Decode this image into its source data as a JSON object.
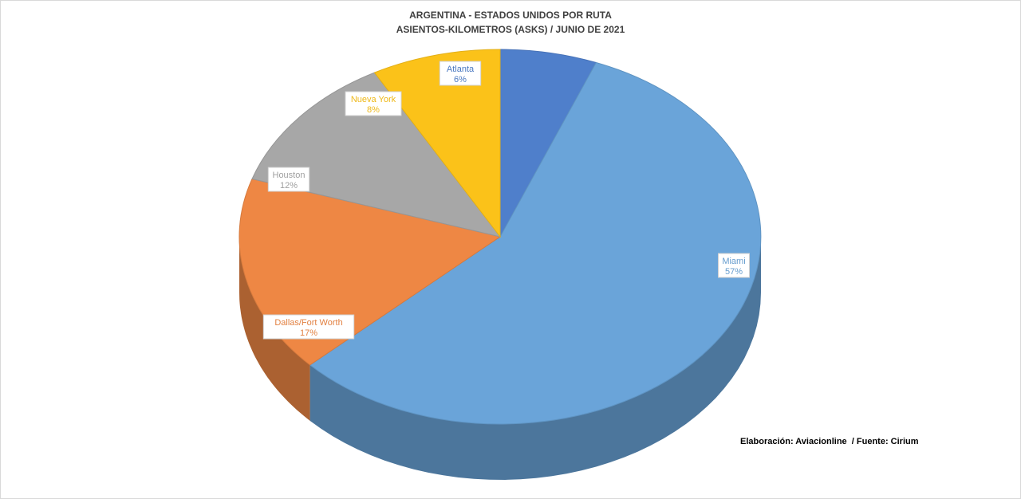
{
  "chart_data": {
    "type": "pie",
    "title_lines": [
      "ARGENTINA - ESTADOS UNIDOS POR RUTA",
      "ASIENTOS-KILOMETROS (ASKS) / JUNIO DE 2021"
    ],
    "slices": [
      {
        "label": "Atlanta",
        "value_label": "6%",
        "value": 6,
        "color": "#4f7fcb"
      },
      {
        "label": "Miami",
        "value_label": "57%",
        "value": 57,
        "color": "#6aa4d9"
      },
      {
        "label": "Dallas/Fort Worth",
        "value_label": "17%",
        "value": 17,
        "color": "#ee8744"
      },
      {
        "label": "Houston",
        "value_label": "12%",
        "value": 12,
        "color": "#a7a7a7"
      },
      {
        "label": "Nueva York",
        "value_label": "8%",
        "value": 8,
        "color": "#fbc219"
      }
    ],
    "style": "3d-pie"
  },
  "credits": {
    "elaboracion": "Elaboración: Aviacionline",
    "fuente": "  / Fuente: Cirium"
  }
}
